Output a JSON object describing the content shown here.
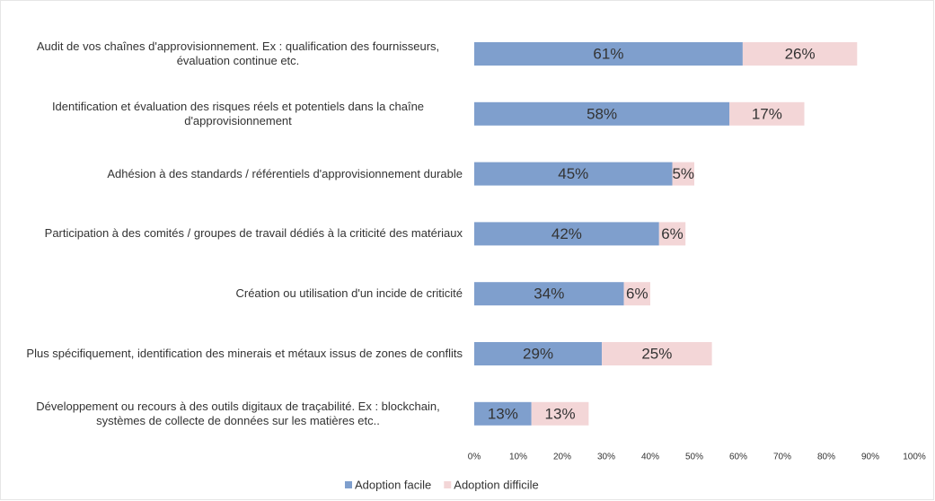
{
  "chart_data": {
    "type": "stacked-barh",
    "categories": [
      "Audit de vos chaînes d'approvisionnement. Ex : qualification des fournisseurs, évaluation continue etc.",
      "Identification et évaluation des risques réels et potentiels dans la chaîne d'approvisionnement",
      "Adhésion à  des standards / référentiels d'approvisionnement durable",
      "Participation à  des comités / groupes de travail dédiés à  la criticité des matériaux",
      "Création ou utilisation d'un incide de criticité",
      "Plus spécifiquement, identification des minerais et métaux issus de zones de conflits",
      "Développement ou recours à  des outils digitaux de traçabilité. Ex : blockchain, systèmes de collecte de données sur les matières etc.."
    ],
    "series": [
      {
        "name": "Adoption facile",
        "color": "#7f9fcd",
        "values": [
          61,
          58,
          45,
          42,
          34,
          29,
          13
        ],
        "value_labels": [
          "61%",
          "58%",
          "45%",
          "42%",
          "34%",
          "29%",
          "13%"
        ]
      },
      {
        "name": "Adoption difficile",
        "color": "#f3d6d7",
        "values": [
          26,
          17,
          5,
          6,
          6,
          25,
          13
        ],
        "value_labels": [
          "26%",
          "17%",
          "5%",
          "6%",
          "6%",
          "25%",
          "13%"
        ]
      }
    ],
    "xlim": [
      0,
      100
    ],
    "xticks": [
      {
        "value": 0,
        "label": "0%"
      },
      {
        "value": 10,
        "label": "10%"
      },
      {
        "value": 20,
        "label": "20%"
      },
      {
        "value": 30,
        "label": "30%"
      },
      {
        "value": 40,
        "label": "40%"
      },
      {
        "value": 50,
        "label": "50%"
      },
      {
        "value": 60,
        "label": "60%"
      },
      {
        "value": 70,
        "label": "70%"
      },
      {
        "value": 80,
        "label": "80%"
      },
      {
        "value": 90,
        "label": "90%"
      },
      {
        "value": 100,
        "label": "100%"
      }
    ],
    "legend": "bottom"
  }
}
